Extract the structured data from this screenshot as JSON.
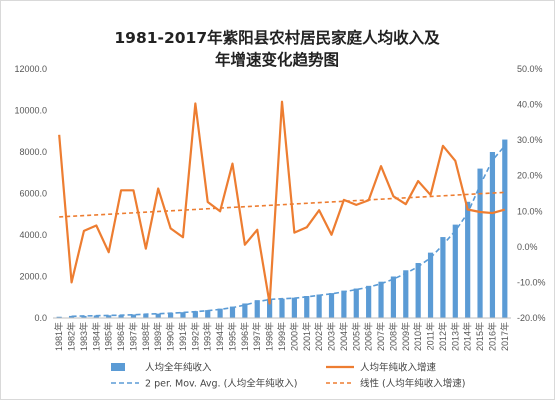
{
  "chart_data": {
    "type": "bar",
    "title": "1981-2017年紫阳县农村居民家庭人均收入及",
    "subtitle": "年增速变化趋势图",
    "categories": [
      "1981",
      "1982",
      "1983",
      "1984",
      "1985",
      "1986",
      "1987",
      "1988",
      "1989",
      "1990",
      "1991",
      "1992",
      "1993",
      "1994",
      "1995",
      "1996",
      "1997",
      "1998",
      "1999",
      "2000",
      "2001",
      "2002",
      "2003",
      "2004",
      "2005",
      "2006",
      "2007",
      "2008",
      "2009",
      "2010",
      "2011",
      "2012",
      "2013",
      "2014",
      "2015",
      "2016",
      "2017"
    ],
    "category_suffix": "年",
    "left_axis": {
      "min": 0,
      "max": 12000,
      "ticks": [
        "0.0",
        "2000.0",
        "4000.0",
        "6000.0",
        "8000.0",
        "10000.0",
        "12000.0"
      ]
    },
    "right_axis": {
      "min": -20,
      "max": 50,
      "ticks": [
        "-20.0%",
        "-10.0%",
        "0.0%",
        "10.0%",
        "20.0%",
        "30.0%",
        "40.0%",
        "50.0%"
      ]
    },
    "grid": false,
    "legend_position": "bottom",
    "series": [
      {
        "name": "人均全年纯收入",
        "kind": "bar",
        "axis": "left",
        "color": "#5b9bd5",
        "values": [
          60,
          100,
          100,
          120,
          130,
          140,
          170,
          200,
          210,
          250,
          280,
          330,
          380,
          450,
          550,
          700,
          860,
          930,
          930,
          980,
          1060,
          1130,
          1200,
          1320,
          1420,
          1550,
          1750,
          2000,
          2300,
          2650,
          3150,
          3900,
          4500,
          5600,
          7200,
          8000,
          8600
        ]
      },
      {
        "name": "人均年纯收入增速",
        "kind": "line",
        "axis": "right",
        "color": "#ed7d31",
        "values": [
          31.5,
          -10.0,
          4.5,
          6.0,
          -1.5,
          15.9,
          15.9,
          -0.5,
          16.4,
          5.2,
          2.7,
          40.3,
          12.6,
          10.0,
          23.4,
          0.6,
          4.8,
          -15.9,
          40.8,
          4.0,
          5.5,
          10.3,
          3.4,
          13.2,
          11.8,
          13.1,
          22.7,
          14.2,
          12.0,
          18.5,
          14.6,
          28.4,
          24.2,
          10.5,
          9.8,
          9.5,
          10.5
        ]
      },
      {
        "name": "2 per. Mov. Avg. (人均全年纯收入)",
        "kind": "moving-average",
        "of": "人均全年纯收入",
        "period": 2,
        "color": "#5b9bd5"
      },
      {
        "name": "线性 (人均年纯收入增速)",
        "kind": "linear-trend",
        "of": "人均年纯收入增速",
        "color": "#ed7d31"
      }
    ]
  }
}
